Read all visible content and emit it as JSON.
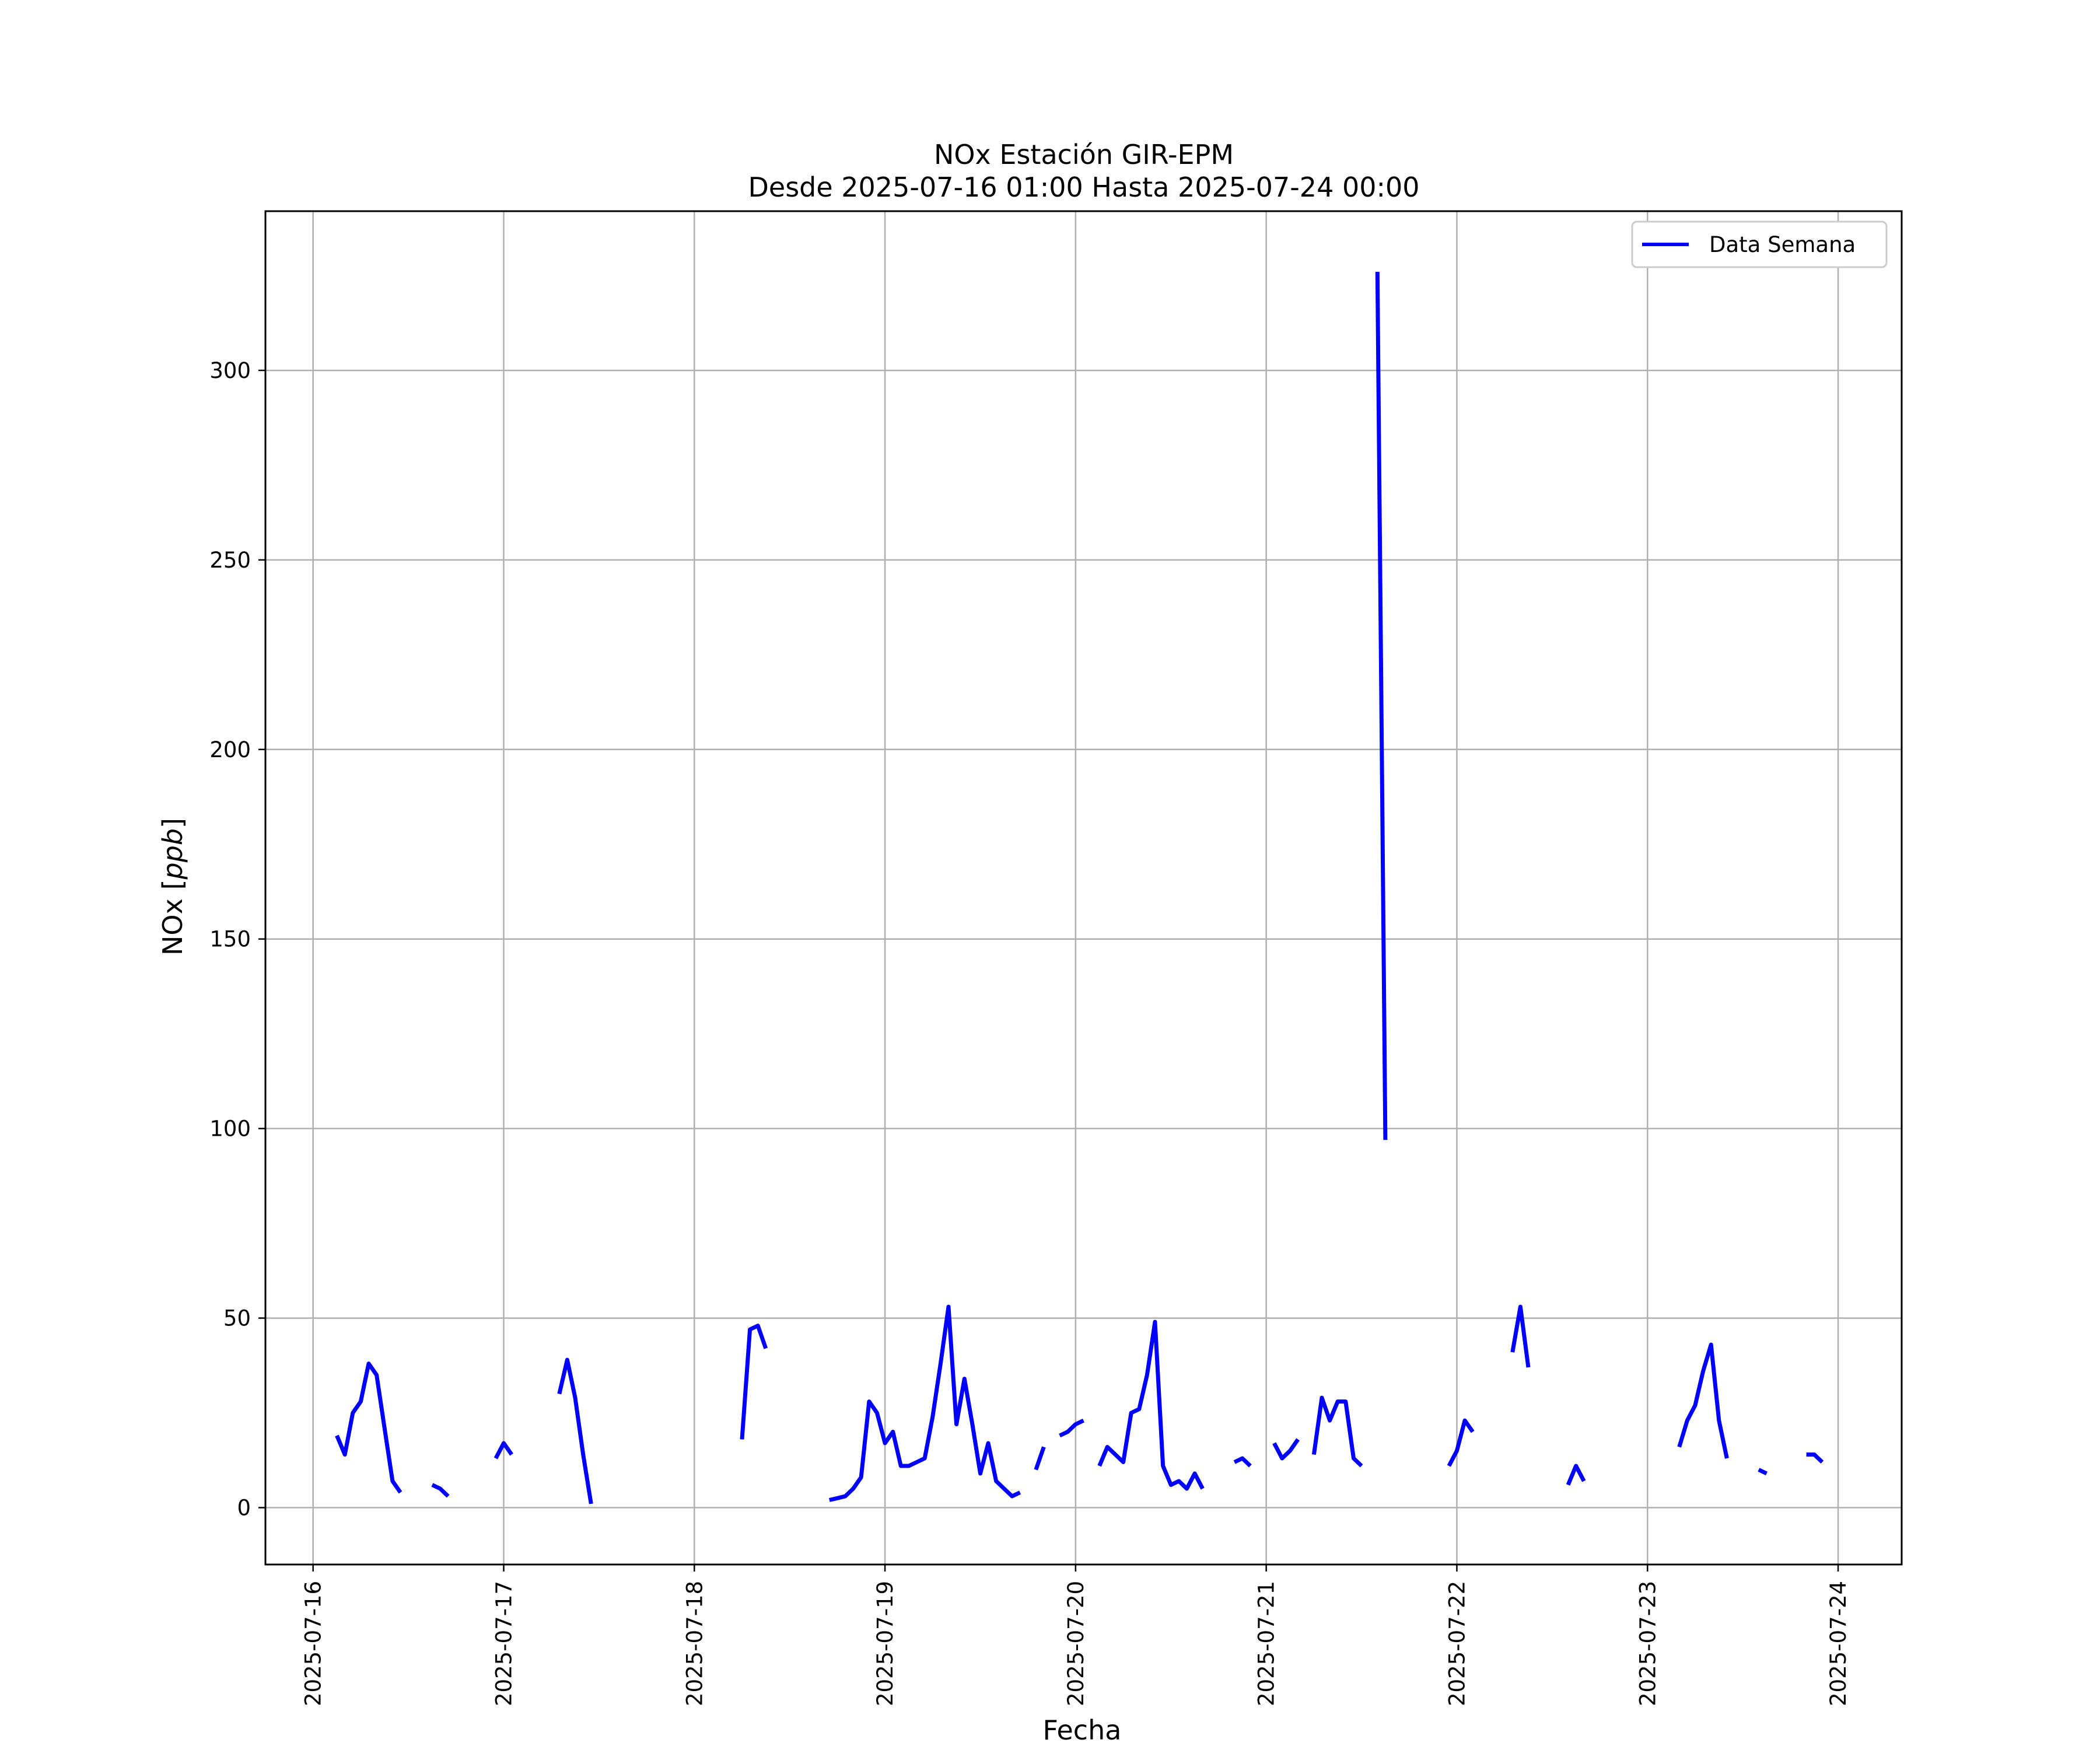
{
  "chart_data": {
    "type": "line",
    "title_line1": "NOx Estación GIR-EPM",
    "title_line2": "Desde 2025-07-16 01:00 Hasta 2025-07-24 00:00",
    "xlabel": "Fecha",
    "ylabel": "NOx [ppb]",
    "ylabel_prefix": "NOx [",
    "ylabel_unit": "ppb",
    "ylabel_suffix": "]",
    "xlim": [
      "2025-07-15 18:00",
      "2025-07-24 08:00"
    ],
    "ylim": [
      -15,
      342
    ],
    "x_ticks": [
      "2025-07-16",
      "2025-07-17",
      "2025-07-18",
      "2025-07-19",
      "2025-07-20",
      "2025-07-21",
      "2025-07-22",
      "2025-07-23",
      "2025-07-24"
    ],
    "y_ticks": [
      0,
      50,
      100,
      150,
      200,
      250,
      300
    ],
    "y_tick_labels": [
      "0",
      "50",
      "100",
      "150",
      "200",
      "250",
      "300"
    ],
    "grid": true,
    "legend_position": "top-right",
    "line_color": "#0000ff",
    "series": [
      {
        "name": "Data Semana",
        "segments": [
          [
            [
              "2025-07-16 03:00",
              19
            ],
            [
              "2025-07-16 04:00",
              14
            ],
            [
              "2025-07-16 05:00",
              25
            ],
            [
              "2025-07-16 06:00",
              28
            ],
            [
              "2025-07-16 07:00",
              38
            ],
            [
              "2025-07-16 08:00",
              35
            ],
            [
              "2025-07-16 09:00",
              21
            ],
            [
              "2025-07-16 10:00",
              7
            ],
            [
              "2025-07-16 11:00",
              4
            ]
          ],
          [
            [
              "2025-07-16 15:00",
              6
            ],
            [
              "2025-07-16 16:00",
              5
            ],
            [
              "2025-07-16 17:00",
              3
            ]
          ],
          [
            [
              "2025-07-16 23:00",
              13
            ],
            [
              "2025-07-17 00:00",
              17
            ],
            [
              "2025-07-17 01:00",
              14
            ]
          ],
          [
            [
              "2025-07-17 07:00",
              30
            ],
            [
              "2025-07-17 08:00",
              39
            ],
            [
              "2025-07-17 09:00",
              29
            ],
            [
              "2025-07-17 10:00",
              14
            ],
            [
              "2025-07-17 11:00",
              1
            ]
          ],
          [
            [
              "2025-07-18 06:00",
              18
            ],
            [
              "2025-07-18 07:00",
              47
            ],
            [
              "2025-07-18 08:00",
              48
            ],
            [
              "2025-07-18 09:00",
              42
            ]
          ],
          [
            [
              "2025-07-18 17:00",
              2
            ],
            [
              "2025-07-18 18:00",
              2.5
            ],
            [
              "2025-07-18 19:00",
              3
            ],
            [
              "2025-07-18 20:00",
              5
            ],
            [
              "2025-07-18 21:00",
              8
            ],
            [
              "2025-07-18 22:00",
              28
            ],
            [
              "2025-07-18 23:00",
              25
            ],
            [
              "2025-07-19 00:00",
              17
            ],
            [
              "2025-07-19 01:00",
              20
            ],
            [
              "2025-07-19 02:00",
              11
            ],
            [
              "2025-07-19 03:00",
              11
            ],
            [
              "2025-07-19 04:00",
              12
            ],
            [
              "2025-07-19 05:00",
              13
            ],
            [
              "2025-07-19 06:00",
              24
            ],
            [
              "2025-07-19 07:00",
              38
            ],
            [
              "2025-07-19 08:00",
              53
            ],
            [
              "2025-07-19 09:00",
              22
            ],
            [
              "2025-07-19 10:00",
              34
            ],
            [
              "2025-07-19 11:00",
              22
            ],
            [
              "2025-07-19 12:00",
              9
            ],
            [
              "2025-07-19 13:00",
              17
            ],
            [
              "2025-07-19 14:00",
              7
            ],
            [
              "2025-07-19 15:00",
              5
            ],
            [
              "2025-07-19 16:00",
              3
            ],
            [
              "2025-07-19 17:00",
              4
            ]
          ],
          [
            [
              "2025-07-19 19:00",
              10
            ],
            [
              "2025-07-19 20:00",
              16
            ]
          ],
          [
            [
              "2025-07-19 22:00",
              19
            ],
            [
              "2025-07-19 23:00",
              20
            ],
            [
              "2025-07-20 00:00",
              22
            ],
            [
              "2025-07-20 01:00",
              23
            ]
          ],
          [
            [
              "2025-07-20 03:00",
              11
            ],
            [
              "2025-07-20 04:00",
              16
            ],
            [
              "2025-07-20 05:00",
              14
            ],
            [
              "2025-07-20 06:00",
              12
            ],
            [
              "2025-07-20 07:00",
              25
            ],
            [
              "2025-07-20 08:00",
              26
            ],
            [
              "2025-07-20 09:00",
              35
            ],
            [
              "2025-07-20 10:00",
              49
            ],
            [
              "2025-07-20 11:00",
              11
            ],
            [
              "2025-07-20 12:00",
              6
            ],
            [
              "2025-07-20 13:00",
              7
            ],
            [
              "2025-07-20 14:00",
              5
            ],
            [
              "2025-07-20 15:00",
              9
            ],
            [
              "2025-07-20 16:00",
              5
            ]
          ],
          [
            [
              "2025-07-20 20:00",
              12
            ],
            [
              "2025-07-20 21:00",
              13
            ],
            [
              "2025-07-20 22:00",
              11
            ]
          ],
          [
            [
              "2025-07-21 01:00",
              17
            ],
            [
              "2025-07-21 02:00",
              13
            ],
            [
              "2025-07-21 03:00",
              15
            ],
            [
              "2025-07-21 04:00",
              18
            ]
          ],
          [
            [
              "2025-07-21 06:00",
              14
            ],
            [
              "2025-07-21 07:00",
              29
            ],
            [
              "2025-07-21 08:00",
              23
            ],
            [
              "2025-07-21 09:00",
              28
            ],
            [
              "2025-07-21 10:00",
              28
            ],
            [
              "2025-07-21 11:00",
              13
            ],
            [
              "2025-07-21 12:00",
              11
            ]
          ],
          [
            [
              "2025-07-21 14:00",
              326
            ],
            [
              "2025-07-21 15:00",
              97
            ]
          ],
          [
            [
              "2025-07-21 23:00",
              11
            ],
            [
              "2025-07-22 00:00",
              15
            ],
            [
              "2025-07-22 01:00",
              23
            ],
            [
              "2025-07-22 02:00",
              20
            ]
          ],
          [
            [
              "2025-07-22 07:00",
              41
            ],
            [
              "2025-07-22 08:00",
              53
            ],
            [
              "2025-07-22 09:00",
              37
            ]
          ],
          [
            [
              "2025-07-22 14:00",
              6
            ],
            [
              "2025-07-22 15:00",
              11
            ],
            [
              "2025-07-22 16:00",
              7
            ]
          ],
          [
            [
              "2025-07-23 04:00",
              16
            ],
            [
              "2025-07-23 05:00",
              23
            ],
            [
              "2025-07-23 06:00",
              27
            ],
            [
              "2025-07-23 07:00",
              36
            ],
            [
              "2025-07-23 08:00",
              43
            ],
            [
              "2025-07-23 09:00",
              23
            ],
            [
              "2025-07-23 10:00",
              13
            ]
          ],
          [
            [
              "2025-07-23 14:00",
              10
            ],
            [
              "2025-07-23 15:00",
              9
            ]
          ],
          [
            [
              "2025-07-23 20:00",
              14
            ],
            [
              "2025-07-23 21:00",
              14
            ],
            [
              "2025-07-23 22:00",
              12
            ]
          ]
        ]
      }
    ]
  }
}
